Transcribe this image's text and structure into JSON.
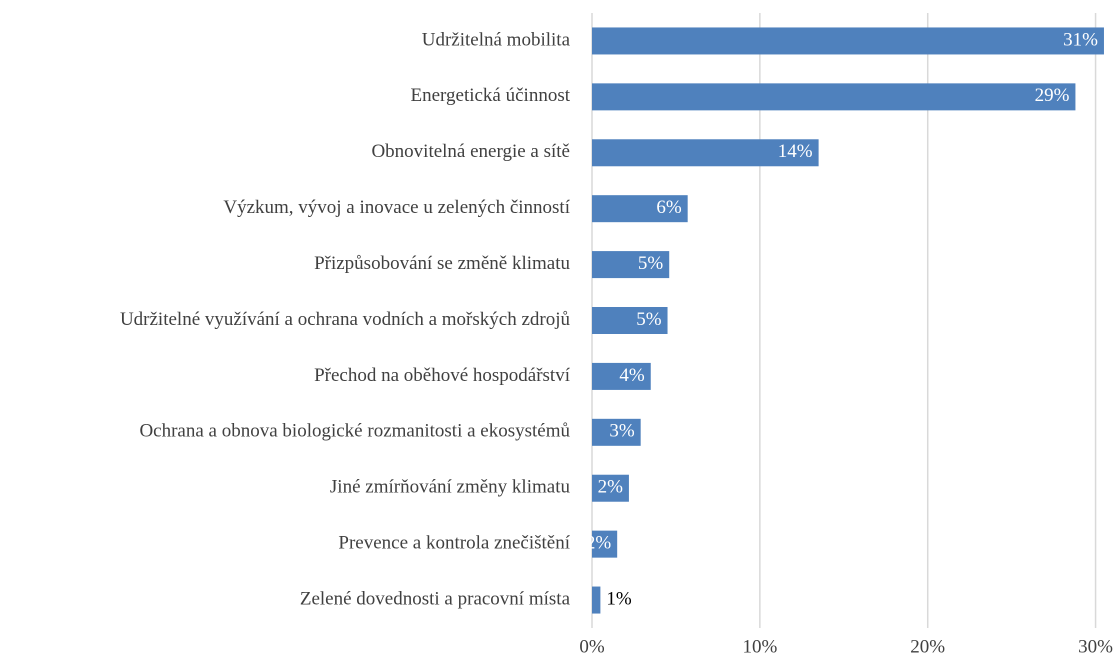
{
  "chart_data": {
    "type": "bar",
    "orientation": "horizontal",
    "categories": [
      "Udržitelná mobilita",
      "Energetická účinnost",
      "Obnovitelná energie a sítě",
      "Výzkum, vývoj a inovace u zelených činností",
      "Přizpůsobování se změně klimatu",
      "Udržitelné využívání a ochrana vodních a mořských zdrojů",
      "Přechod na oběhové hospodářství",
      "Ochrana a obnova biologické rozmanitosti a ekosystémů",
      "Jiné zmírňování změny klimatu",
      "Prevence a kontrola znečištění",
      "Zelené dovednosti a pracovní místa"
    ],
    "values": [
      30.5,
      28.8,
      13.5,
      5.7,
      4.6,
      4.5,
      3.5,
      2.9,
      2.2,
      1.5,
      0.5
    ],
    "value_labels": [
      "31%",
      "29%",
      "14%",
      "6%",
      "5%",
      "5%",
      "4%",
      "3%",
      "2%",
      "2%",
      "1%"
    ],
    "color": "#4f81bd",
    "xlim": [
      0,
      30.8
    ],
    "xticks": [
      {
        "value": 0,
        "label": "0%"
      },
      {
        "value": 10,
        "label": "10%"
      },
      {
        "value": 20,
        "label": "20%"
      },
      {
        "value": 30,
        "label": "30%"
      }
    ],
    "grid": true
  }
}
